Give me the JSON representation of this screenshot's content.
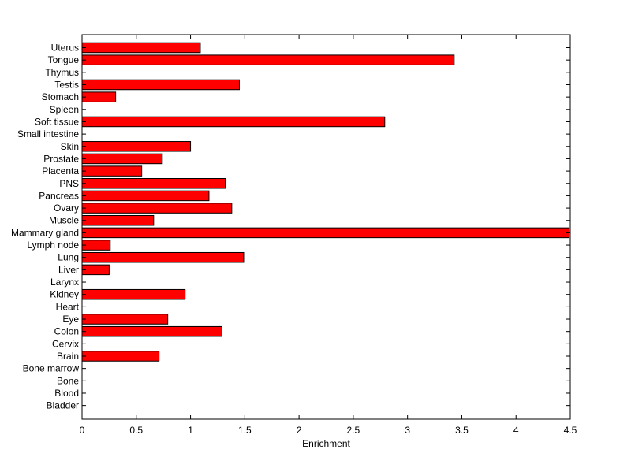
{
  "chart_data": {
    "type": "bar",
    "orientation": "horizontal",
    "xlabel": "Enrichment",
    "xlim": [
      0,
      4.5
    ],
    "x_ticks": [
      0,
      0.5,
      1,
      1.5,
      2,
      2.5,
      3,
      3.5,
      4,
      4.5
    ],
    "x_tick_labels": [
      "0",
      "0.5",
      "1",
      "1.5",
      "2",
      "2.5",
      "3",
      "3.5",
      "4",
      "4.5"
    ],
    "categories": [
      "Uterus",
      "Tongue",
      "Thymus",
      "Testis",
      "Stomach",
      "Spleen",
      "Soft tissue",
      "Small intestine",
      "Skin",
      "Prostate",
      "Placenta",
      "PNS",
      "Pancreas",
      "Ovary",
      "Muscle",
      "Mammary gland",
      "Lymph node",
      "Lung",
      "Liver",
      "Larynx",
      "Kidney",
      "Heart",
      "Eye",
      "Colon",
      "Cervix",
      "Brain",
      "Bone marrow",
      "Bone",
      "Blood",
      "Bladder"
    ],
    "values": [
      1.09,
      3.43,
      0,
      1.45,
      0.31,
      0,
      2.79,
      0,
      1.0,
      0.74,
      0.55,
      1.32,
      1.17,
      1.38,
      0.66,
      4.49,
      0.26,
      1.49,
      0.25,
      0,
      0.95,
      0,
      0.79,
      1.29,
      0,
      0.71,
      0,
      0,
      0,
      0
    ],
    "bar_color": "#ff0000",
    "bar_edge_color": "#000000",
    "grid": false,
    "legend": "none"
  }
}
